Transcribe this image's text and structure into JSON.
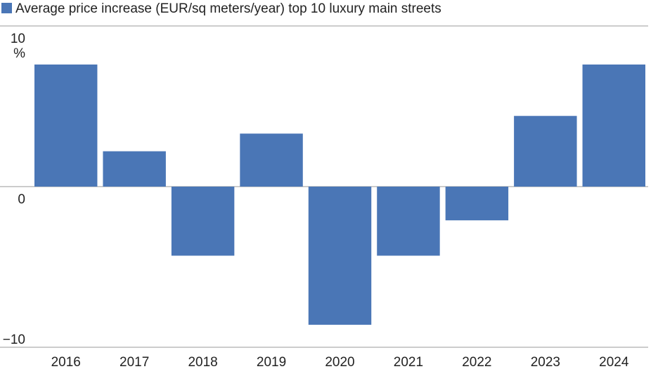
{
  "chart_data": {
    "type": "bar",
    "legend": {
      "label": "Average price increase (EUR/sq meters/year) top 10 luxury main streets",
      "placement": "top-left"
    },
    "categories": [
      "2016",
      "2017",
      "2018",
      "2019",
      "2020",
      "2021",
      "2022",
      "2023",
      "2024"
    ],
    "series": [
      {
        "name": "Average price increase (EUR/sq meters/year) top 10 luxury main streets",
        "values": [
          7.6,
          2.2,
          -4.3,
          3.3,
          -8.6,
          -4.3,
          -2.1,
          4.4,
          7.6
        ],
        "color": "#4a76b6"
      }
    ],
    "ylim": [
      -10,
      10
    ],
    "yticks": [
      10,
      0,
      -10
    ],
    "ytick_labels": [
      "10",
      "0",
      "−10"
    ],
    "yunit": "%",
    "grid": "horizontal lines at ticks",
    "colors": {
      "bar": "#4a76b6",
      "gridline": "#9a9a9a",
      "text": "#222222"
    }
  }
}
